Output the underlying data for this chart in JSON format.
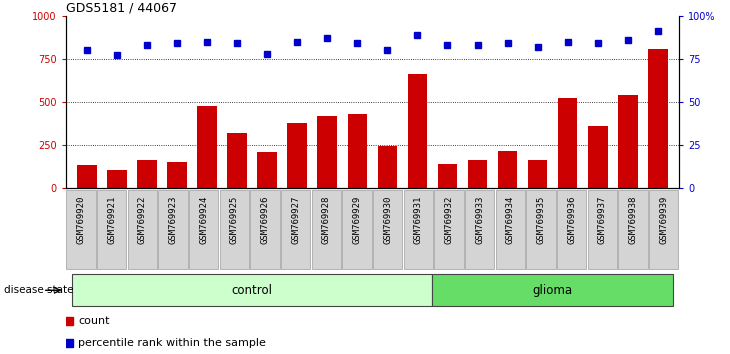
{
  "title": "GDS5181 / 44067",
  "samples": [
    "GSM769920",
    "GSM769921",
    "GSM769922",
    "GSM769923",
    "GSM769924",
    "GSM769925",
    "GSM769926",
    "GSM769927",
    "GSM769928",
    "GSM769929",
    "GSM769930",
    "GSM769931",
    "GSM769932",
    "GSM769933",
    "GSM769934",
    "GSM769935",
    "GSM769936",
    "GSM769937",
    "GSM769938",
    "GSM769939"
  ],
  "counts": [
    130,
    100,
    160,
    150,
    475,
    320,
    205,
    375,
    415,
    430,
    245,
    660,
    140,
    160,
    215,
    160,
    520,
    360,
    540,
    810
  ],
  "percentiles": [
    80,
    77,
    83,
    84,
    85,
    84,
    78,
    85,
    87,
    84,
    80,
    89,
    83,
    83,
    84,
    82,
    85,
    84,
    86,
    91
  ],
  "control_count": 12,
  "glioma_count": 8,
  "bar_color": "#cc0000",
  "dot_color": "#0000cc",
  "ylim_left": [
    0,
    1000
  ],
  "ylim_right": [
    0,
    100
  ],
  "yticks_left": [
    0,
    250,
    500,
    750,
    1000
  ],
  "yticks_right": [
    0,
    25,
    50,
    75,
    100
  ],
  "grid_values": [
    250,
    500,
    750
  ],
  "control_color": "#ccffcc",
  "glioma_color": "#66dd66",
  "disease_state_label": "disease state",
  "control_label": "control",
  "glioma_label": "glioma",
  "legend_count_label": "count",
  "legend_pct_label": "percentile rank within the sample",
  "title_fontsize": 9,
  "tick_fontsize": 7,
  "sample_fontsize": 6.5
}
